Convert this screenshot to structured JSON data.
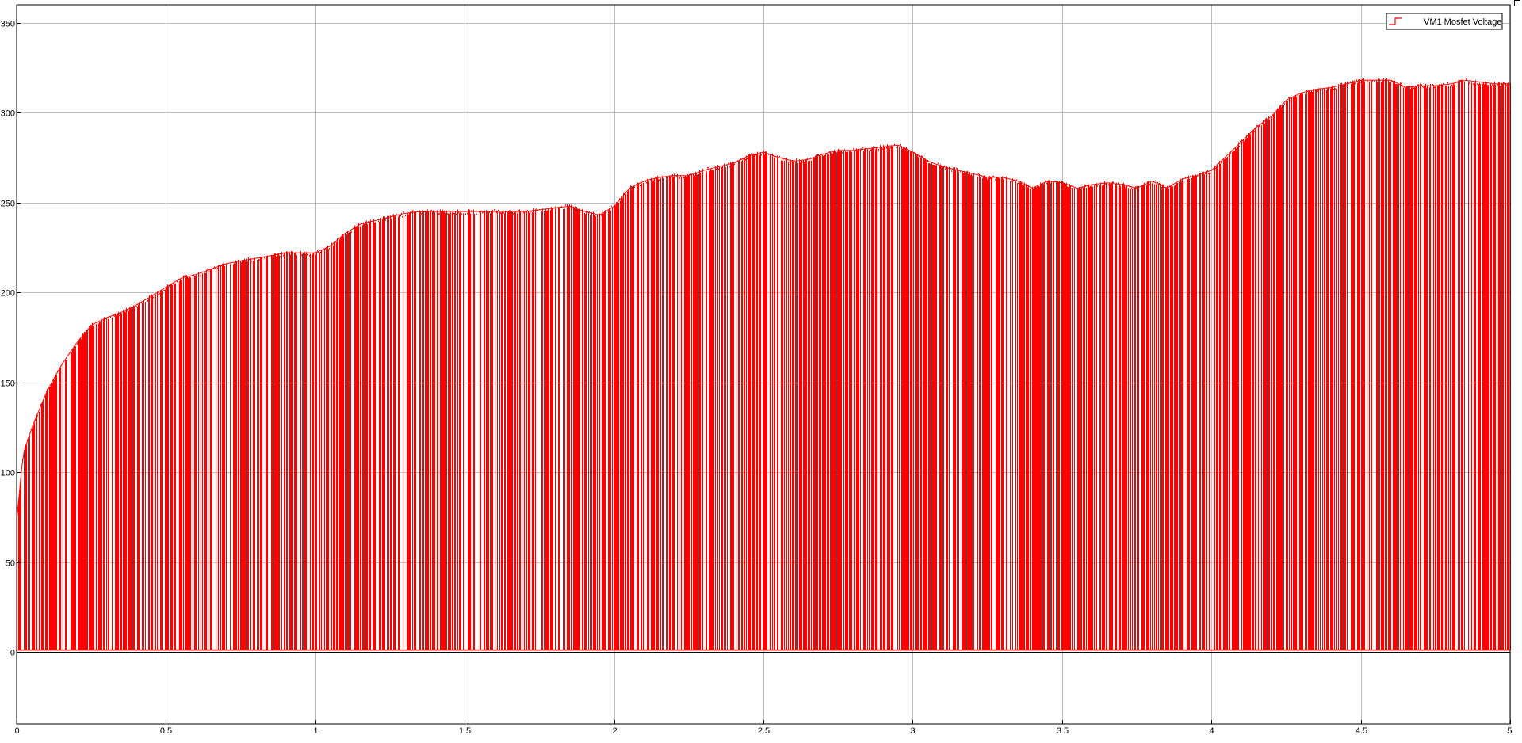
{
  "chart_data": {
    "type": "line",
    "title": "",
    "xlabel": "",
    "ylabel": "",
    "xlim": [
      0,
      5
    ],
    "ylim": [
      -40,
      360
    ],
    "x_ticks": [
      0,
      0.5,
      1,
      1.5,
      2,
      2.5,
      3,
      3.5,
      4,
      4.5,
      5
    ],
    "x_tick_labels": [
      "0",
      "0.5",
      "1",
      "1.5",
      "2",
      "2.5",
      "3",
      "3.5",
      "4",
      "4.5",
      "5"
    ],
    "y_ticks": [
      0,
      50,
      100,
      150,
      200,
      250,
      300,
      350
    ],
    "y_tick_labels": [
      "0",
      "50",
      "100",
      "150",
      "200",
      "250",
      "300",
      "350"
    ],
    "grid": true,
    "legend": {
      "position": "top-right"
    },
    "series": [
      {
        "name": "VM1 Mosfet Voltage",
        "color": "#ff0000",
        "style": "switching",
        "low_value": 1,
        "envelope": {
          "x": [
            0,
            0.02,
            0.05,
            0.1,
            0.15,
            0.2,
            0.25,
            0.3,
            0.35,
            0.4,
            0.45,
            0.5,
            0.55,
            0.6,
            0.7,
            0.8,
            0.9,
            1.0,
            1.05,
            1.1,
            1.15,
            1.2,
            1.25,
            1.3,
            1.35,
            1.4,
            1.5,
            1.6,
            1.7,
            1.8,
            1.85,
            1.9,
            1.95,
            2.0,
            2.05,
            2.1,
            2.15,
            2.2,
            2.25,
            2.3,
            2.35,
            2.4,
            2.45,
            2.5,
            2.55,
            2.6,
            2.65,
            2.7,
            2.75,
            2.8,
            2.85,
            2.9,
            2.95,
            3.0,
            3.05,
            3.1,
            3.15,
            3.2,
            3.25,
            3.3,
            3.35,
            3.4,
            3.45,
            3.5,
            3.55,
            3.6,
            3.65,
            3.7,
            3.75,
            3.8,
            3.85,
            3.9,
            3.95,
            4.0,
            4.05,
            4.1,
            4.15,
            4.2,
            4.25,
            4.3,
            4.35,
            4.4,
            4.45,
            4.5,
            4.55,
            4.6,
            4.65,
            4.7,
            4.75,
            4.8,
            4.85,
            4.9,
            4.95,
            5.0
          ],
          "y": [
            75,
            110,
            125,
            145,
            160,
            172,
            182,
            186,
            189,
            193,
            198,
            203,
            208,
            210,
            216,
            219,
            222,
            222,
            226,
            233,
            238,
            240,
            242,
            244,
            245,
            245,
            245,
            245,
            245,
            247,
            248,
            245,
            243,
            248,
            258,
            262,
            264,
            265,
            265,
            268,
            270,
            272,
            276,
            278,
            275,
            273,
            274,
            277,
            279,
            279,
            280,
            281,
            282,
            278,
            273,
            270,
            268,
            266,
            264,
            264,
            262,
            258,
            262,
            261,
            258,
            260,
            261,
            260,
            258,
            262,
            258,
            263,
            265,
            268,
            276,
            284,
            292,
            298,
            307,
            311,
            313,
            314,
            316,
            318,
            318,
            318,
            314,
            315,
            315,
            316,
            318,
            317,
            316,
            316
          ]
        }
      }
    ]
  }
}
